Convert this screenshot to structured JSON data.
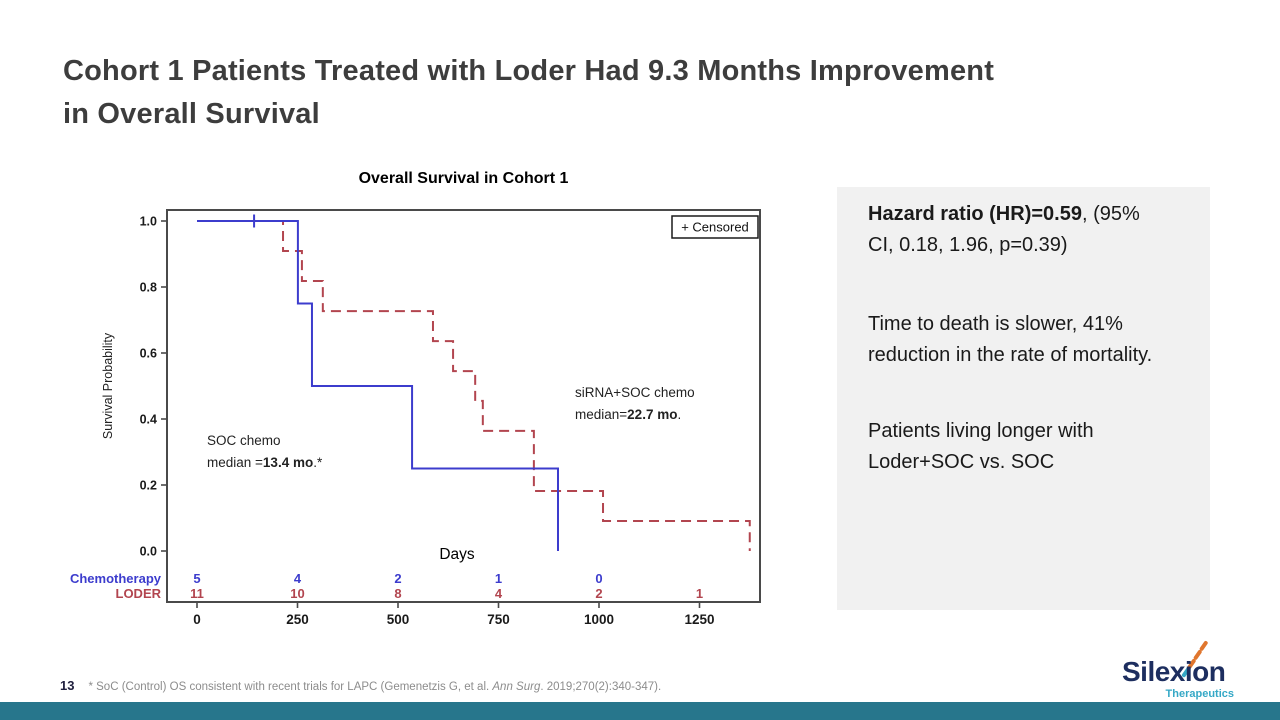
{
  "slide": {
    "title_lines": [
      "Cohort 1 Patients Treated with Loder Had 9.3 Months Improvement",
      "in Overall Survival"
    ],
    "page_number": "13",
    "footnote": {
      "prefix": "* SoC (Control) OS consistent with recent trials for LAPC (Gemenetzis G, et al. ",
      "italic": "Ann Surg",
      "suffix": ". 2019;270(2):340-347)."
    },
    "logo": {
      "name": "Silexion",
      "sub": "Therapeutics"
    },
    "colors": {
      "accent_teal": "#27768c",
      "logo_navy": "#1d2e5f",
      "logo_teal": "#35a8c6",
      "logo_orange": "#e0762e",
      "panel_bg": "#f1f1f1",
      "soc_blue": "#3c3ccd",
      "loder_red": "#b2454f"
    }
  },
  "stats_panel": {
    "p1_bold": "Hazard ratio (HR)=0.59",
    "p1_rest": ", (95% CI, 0.18, 1.96, p=0.39)",
    "p2": "Time to death is slower, 41% reduction in the rate of mortality.",
    "p3": "Patients living longer with Loder+SOC vs. SOC"
  },
  "chart_data": {
    "type": "line",
    "subtype": "kaplan-meier-step",
    "title": "Overall Survival in Cohort 1",
    "xlabel": "Days",
    "ylabel": "Survival Probability",
    "xlim": [
      0,
      1400
    ],
    "ylim": [
      0.0,
      1.0
    ],
    "xticks": [
      0,
      250,
      500,
      750,
      1000,
      1250
    ],
    "yticks": [
      "1.0",
      "0.8",
      "0.6",
      "0.4",
      "0.2",
      "0.0"
    ],
    "grid": false,
    "legend": {
      "label": "+ Censored",
      "position": "top-right"
    },
    "series": [
      {
        "name": "LODER (siRNA+SOC chemo)",
        "color": "#b2454f",
        "line_style": "dashed",
        "median_months": 22.7,
        "steps_day_survival": [
          [
            0,
            1.0
          ],
          [
            214,
            0.909
          ],
          [
            261,
            0.818
          ],
          [
            313,
            0.727
          ],
          [
            587,
            0.636
          ],
          [
            637,
            0.545
          ],
          [
            692,
            0.455
          ],
          [
            711,
            0.364
          ],
          [
            838,
            0.182
          ],
          [
            1010,
            0.091
          ],
          [
            1375,
            0.0
          ]
        ],
        "censor_marks": []
      },
      {
        "name": "Chemotherapy (SOC chemo)",
        "color": "#3c3ccd",
        "line_style": "solid",
        "median_months": 13.4,
        "steps_day_survival": [
          [
            0,
            1.0
          ],
          [
            251,
            0.75
          ],
          [
            286,
            0.5
          ],
          [
            535,
            0.25
          ],
          [
            898,
            0.0
          ]
        ],
        "censor_marks": [
          [
            142,
            1.0
          ]
        ]
      }
    ],
    "annotations": [
      {
        "id": "soc",
        "line1": "SOC chemo",
        "line2_pre": "median =",
        "line2_bold": "13.4 mo",
        "line2_post": ".*"
      },
      {
        "id": "sirna",
        "line1": "siRNA+SOC chemo",
        "line2_pre": "median=",
        "line2_bold": "22.7 mo",
        "line2_post": "."
      }
    ],
    "at_risk_table": {
      "rows": [
        {
          "label": "Chemotherapy",
          "color": "#3c3ccd",
          "values": [
            [
              0,
              "5"
            ],
            [
              250,
              "4"
            ],
            [
              500,
              "2"
            ],
            [
              750,
              "1"
            ],
            [
              1000,
              "0"
            ]
          ]
        },
        {
          "label": "LODER",
          "color": "#b2454f",
          "values": [
            [
              0,
              "11"
            ],
            [
              250,
              "10"
            ],
            [
              500,
              "8"
            ],
            [
              750,
              "4"
            ],
            [
              1000,
              "2"
            ],
            [
              1250,
              "1"
            ]
          ]
        }
      ]
    }
  }
}
